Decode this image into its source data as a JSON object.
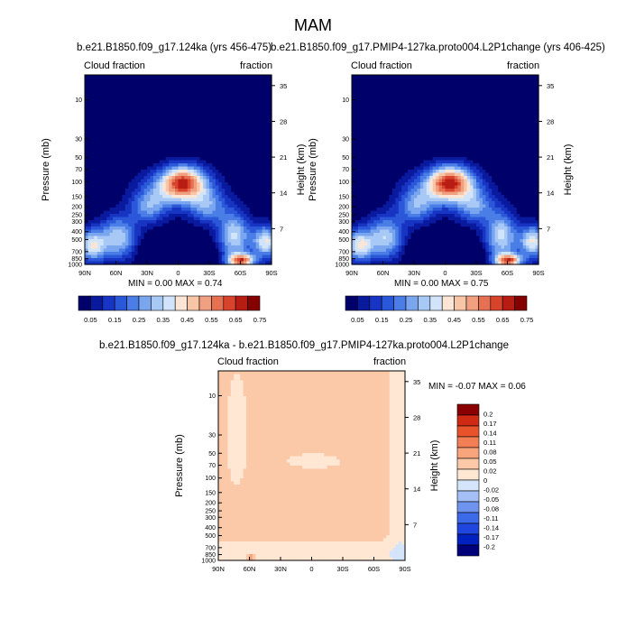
{
  "main_title": "MAM",
  "colors": {
    "abs_palette": [
      "#00006b",
      "#0a1a9e",
      "#1734c2",
      "#2b57d9",
      "#4a7ee6",
      "#7aa6ef",
      "#a8c8f5",
      "#d2e4fa",
      "#fbe6d6",
      "#f6c6a6",
      "#f0a080",
      "#e57052",
      "#d8432c",
      "#b81d14",
      "#850000"
    ],
    "diff_palette": [
      "#00007a",
      "#0020c0",
      "#1f46de",
      "#3d6ae8",
      "#6f94ef",
      "#a3bff5",
      "#d3e4fb",
      "#ffe7d4",
      "#fcc9a8",
      "#f8a47c",
      "#f27e55",
      "#e8532c",
      "#cf2a14",
      "#8a0000"
    ]
  },
  "chart_data": [
    {
      "type": "heatmap",
      "title": "b.e21.B1850.f09_g17.124ka (yrs 456-475)",
      "left_label": "Cloud fraction",
      "right_label": "fraction",
      "xlabel": "",
      "ylabel": "Pressure (mb)",
      "ylabel_right": "Height (km)",
      "x_ticks": [
        "90N",
        "60N",
        "30N",
        "0",
        "30S",
        "60S",
        "90S"
      ],
      "y_ticks": [
        "10",
        "30",
        "50",
        "70",
        "100",
        "150",
        "200",
        "250",
        "300",
        "400",
        "500",
        "700",
        "850",
        "1000"
      ],
      "height_ticks": [
        "35",
        "28",
        "21",
        "14",
        "7"
      ],
      "min": 0.0,
      "max": 0.74,
      "min_text": "MIN =   0.00  MAX =   0.74",
      "colorbar_labels": [
        "0.05",
        "0.15",
        "0.25",
        "0.35",
        "0.45",
        "0.55",
        "0.65",
        "0.75"
      ]
    },
    {
      "type": "heatmap",
      "title": "b.e21.B1850.f09_g17.PMIP4-127ka.proto004.L2P1change (yrs 406-425)",
      "left_label": "Cloud fraction",
      "right_label": "fraction",
      "xlabel": "",
      "ylabel": "Pressure (mb)",
      "ylabel_right": "Height (km)",
      "x_ticks": [
        "90N",
        "60N",
        "30N",
        "0",
        "30S",
        "60S",
        "90S"
      ],
      "y_ticks": [
        "10",
        "30",
        "50",
        "70",
        "100",
        "150",
        "200",
        "250",
        "300",
        "400",
        "500",
        "700",
        "850",
        "1000"
      ],
      "height_ticks": [
        "35",
        "28",
        "21",
        "14",
        "7"
      ],
      "min": 0.0,
      "max": 0.75,
      "min_text": "MIN =   0.00  MAX =   0.75",
      "colorbar_labels": [
        "0.05",
        "0.15",
        "0.25",
        "0.35",
        "0.45",
        "0.55",
        "0.65",
        "0.75"
      ]
    },
    {
      "type": "heatmap",
      "title": "b.e21.B1850.f09_g17.124ka - b.e21.B1850.f09_g17.PMIP4-127ka.proto004.L2P1change",
      "left_label": "Cloud fraction",
      "right_label": "fraction",
      "xlabel": "",
      "ylabel": "Pressure (mb)",
      "ylabel_right": "Height (km)",
      "x_ticks": [
        "90N",
        "60N",
        "30N",
        "0",
        "30S",
        "60S",
        "90S"
      ],
      "y_ticks": [
        "10",
        "30",
        "50",
        "70",
        "100",
        "150",
        "200",
        "250",
        "300",
        "400",
        "500",
        "700",
        "850",
        "1000"
      ],
      "height_ticks": [
        "35",
        "28",
        "21",
        "14",
        "7"
      ],
      "min": -0.07,
      "max": 0.06,
      "min_text": "MIN =  -0.07  MAX =   0.06",
      "colorbar_labels": [
        "0.2",
        "0.17",
        "0.14",
        "0.11",
        "0.08",
        "0.05",
        "0.02",
        "0",
        "-0.02",
        "-0.05",
        "-0.08",
        "-0.11",
        "-0.14",
        "-0.17",
        "-0.2"
      ]
    }
  ]
}
